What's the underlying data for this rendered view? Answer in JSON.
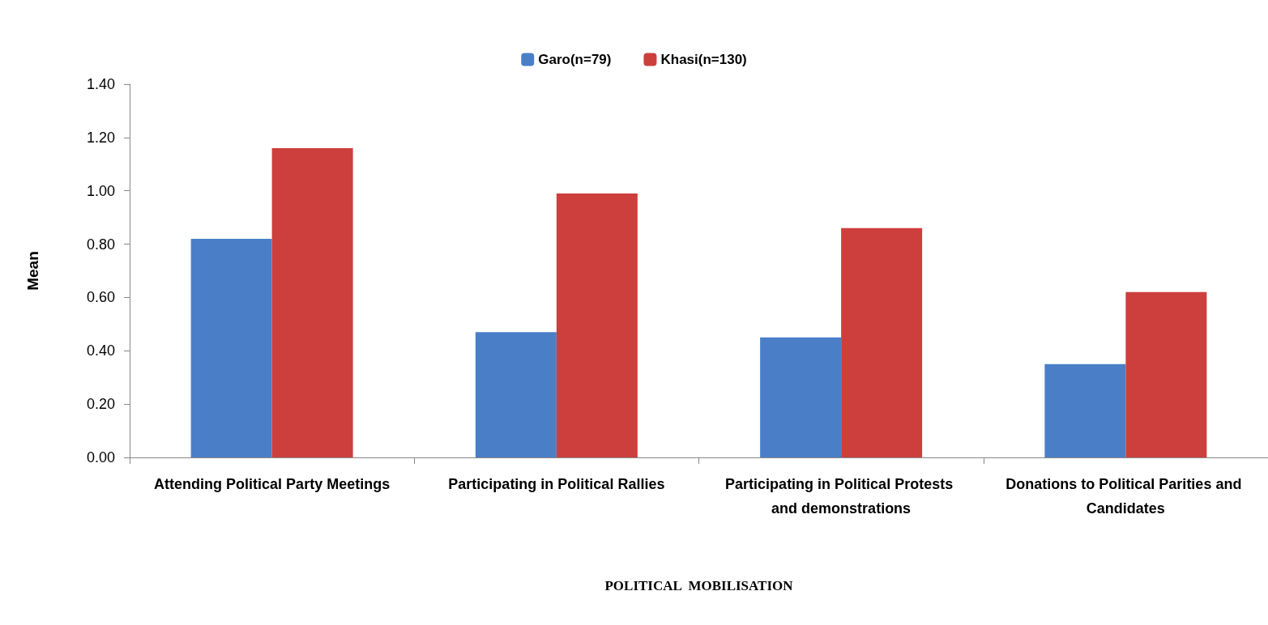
{
  "chart_data": {
    "type": "bar",
    "xlabel": "POLITICAL  MOBILISATION",
    "ylabel": "Mean",
    "categories": [
      "Attending Political Party Meetings",
      "Participating in Political Rallies",
      "Participating in Political Protests and demonstrations",
      "Donations to Political Parities and Candidates"
    ],
    "series": [
      {
        "name": "Garo(n=79)",
        "color": "#4a7fc8",
        "values": [
          0.82,
          0.47,
          0.45,
          0.35
        ]
      },
      {
        "name": "Khasi(n=130)",
        "color": "#cc3f3c",
        "values": [
          1.16,
          0.99,
          0.86,
          0.62
        ]
      }
    ],
    "ylim": [
      0,
      1.4
    ],
    "yticks": [
      {
        "value": 0,
        "label": "0.00"
      },
      {
        "value": 0.2,
        "label": "0.20"
      },
      {
        "value": 0.4,
        "label": "0.40"
      },
      {
        "value": 0.6,
        "label": "0.60"
      },
      {
        "value": 0.8,
        "label": "0.80"
      },
      {
        "value": 1,
        "label": "1.00"
      },
      {
        "value": 1.2,
        "label": "1.20"
      },
      {
        "value": 1.4,
        "label": "1.40"
      }
    ],
    "grid": false,
    "legend": "top"
  }
}
